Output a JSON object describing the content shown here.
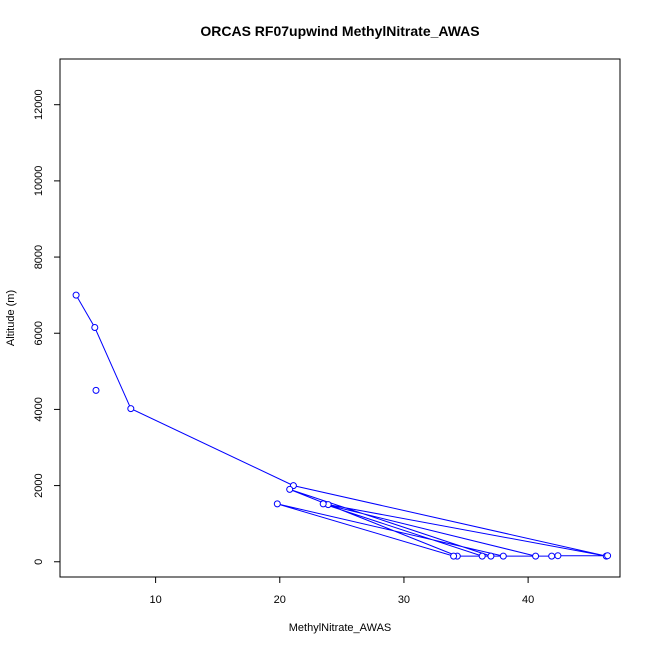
{
  "chart_data": {
    "type": "line",
    "title": "ORCAS RF07upwind MethylNitrate_AWAS",
    "xlabel": "MethylNitrate_AWAS",
    "ylabel": "Altitude (m)",
    "xlim": [
      2.3,
      47.4
    ],
    "ylim": [
      -400,
      13200
    ],
    "xticks": [
      10,
      20,
      30,
      40
    ],
    "yticks": [
      0,
      2000,
      4000,
      6000,
      8000,
      10000,
      12000
    ],
    "grid": false,
    "legend": "none",
    "markers": "open-circle",
    "series": [
      {
        "color": "#0000ff",
        "x": [
          3.6,
          5.1,
          8.0,
          21.1,
          46.3,
          23.9,
          34.3,
          20.8,
          37.0,
          36.3,
          23.5,
          40.6,
          34.0,
          19.8,
          38.0,
          41.9,
          42.4,
          46.4
        ],
        "y": [
          7000,
          6150,
          4020,
          2000,
          150,
          1500,
          150,
          1900,
          150,
          150,
          1520,
          150,
          150,
          1520,
          150,
          150,
          160,
          160
        ]
      },
      {
        "color": "#0000ff",
        "x": [
          5.2
        ],
        "y": [
          4500
        ]
      }
    ]
  }
}
